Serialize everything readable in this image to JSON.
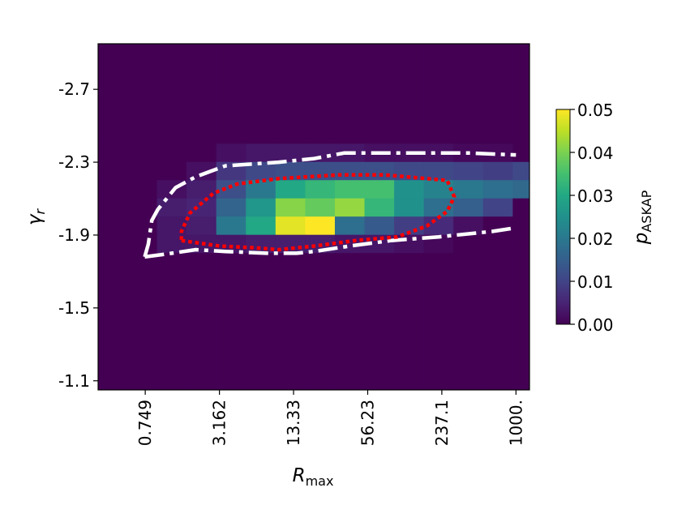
{
  "chart_data": {
    "type": "heatmap",
    "xlabel": "R",
    "xlabel_sub": "max",
    "ylabel": "γ",
    "ylabel_sub": "r",
    "x_scale": "log",
    "x_range": [
      0.3,
      1300
    ],
    "y_range": [
      -1.05,
      -2.95
    ],
    "x_ticks": [
      {
        "value": 0.749,
        "label": "0.749"
      },
      {
        "value": 3.162,
        "label": "3.162"
      },
      {
        "value": 13.33,
        "label": "13.33"
      },
      {
        "value": 56.23,
        "label": "56.23"
      },
      {
        "value": 237.1,
        "label": "237.1"
      },
      {
        "value": 1000,
        "label": "1000."
      }
    ],
    "y_ticks": [
      {
        "value": -2.7,
        "label": "-2.7"
      },
      {
        "value": -2.3,
        "label": "-2.3"
      },
      {
        "value": -1.9,
        "label": "-1.9"
      },
      {
        "value": -1.5,
        "label": "-1.5"
      },
      {
        "value": -1.1,
        "label": "-1.1"
      }
    ],
    "log10_x_edges": [
      -0.525,
      -0.275,
      -0.025,
      0.225,
      0.475,
      0.725,
      0.975,
      1.225,
      1.475,
      1.725,
      1.975,
      2.225,
      2.475,
      2.725,
      2.975,
      3.11
    ],
    "y_edges": [
      -2.95,
      -2.45,
      -2.4,
      -2.3,
      -2.2,
      -2.1,
      -2.0,
      -1.9,
      -1.8,
      -1.05
    ],
    "z_values": [
      [
        0.0,
        0.0,
        0.0,
        0.0,
        0.0,
        0.0,
        0.0,
        0.0,
        0.0,
        0.0,
        0.0,
        0.0,
        0.0,
        0.0,
        0.0
      ],
      [
        0.0,
        0.0,
        0.0,
        0.0,
        0.0,
        0.0,
        0.0,
        0.0,
        0.0,
        0.0,
        0.0,
        0.0,
        0.0,
        0.0,
        0.0
      ],
      [
        0.0,
        0.0,
        0.0,
        0.0,
        0.002,
        0.003,
        0.003,
        0.003,
        0.003,
        0.002,
        0.002,
        0.002,
        0.001,
        0.001,
        0.0
      ],
      [
        0.0,
        0.0,
        0.0,
        0.002,
        0.008,
        0.011,
        0.012,
        0.012,
        0.012,
        0.012,
        0.011,
        0.011,
        0.01,
        0.009,
        0.011
      ],
      [
        0.0,
        0.0,
        0.002,
        0.004,
        0.012,
        0.02,
        0.03,
        0.033,
        0.035,
        0.035,
        0.025,
        0.022,
        0.02,
        0.018,
        0.017
      ],
      [
        0.0,
        0.0,
        0.004,
        0.005,
        0.016,
        0.026,
        0.041,
        0.038,
        0.042,
        0.033,
        0.025,
        0.018,
        0.015,
        0.01,
        0.0
      ],
      [
        0.0,
        0.0,
        0.003,
        0.004,
        0.02,
        0.03,
        0.048,
        0.05,
        0.018,
        0.014,
        0.009,
        0.006,
        0.002,
        0.0,
        0.0
      ],
      [
        0.0,
        0.0,
        0.003,
        0.003,
        0.003,
        0.004,
        0.004,
        0.004,
        0.003,
        0.003,
        0.002,
        0.001,
        0.0,
        0.0,
        0.0
      ],
      [
        0.0,
        0.0,
        0.0,
        0.0,
        0.0,
        0.0,
        0.0,
        0.0,
        0.0,
        0.0,
        0.0,
        0.0,
        0.0,
        0.0,
        0.0
      ]
    ],
    "contours": [
      {
        "style": "dash-dot",
        "color": "#ffffff",
        "points": [
          [
            -0.13,
            -1.78
          ],
          [
            0.1,
            -1.8
          ],
          [
            0.3,
            -1.82
          ],
          [
            0.55,
            -1.81
          ],
          [
            0.9,
            -1.8
          ],
          [
            1.15,
            -1.8
          ],
          [
            1.3,
            -1.81
          ],
          [
            1.6,
            -1.84
          ],
          [
            1.95,
            -1.87
          ],
          [
            2.35,
            -1.89
          ],
          [
            2.8,
            -1.92
          ],
          [
            3.0,
            -1.94
          ]
        ],
        "closed": false
      },
      {
        "style": "dash-dot",
        "color": "#ffffff",
        "points": [
          [
            -0.13,
            -1.78
          ],
          [
            -0.1,
            -1.85
          ],
          [
            -0.07,
            -1.98
          ],
          [
            -0.02,
            -2.04
          ],
          [
            0.13,
            -2.16
          ],
          [
            0.3,
            -2.22
          ],
          [
            0.55,
            -2.28
          ],
          [
            1.0,
            -2.3
          ],
          [
            1.3,
            -2.32
          ],
          [
            1.55,
            -2.35
          ],
          [
            2.0,
            -2.35
          ],
          [
            2.6,
            -2.35
          ],
          [
            3.0,
            -2.34
          ]
        ],
        "closed": false
      },
      {
        "style": "dotted",
        "color": "#ff0000",
        "points": [
          [
            0.18,
            -1.87
          ],
          [
            0.5,
            -1.84
          ],
          [
            0.8,
            -1.83
          ],
          [
            1.0,
            -1.82
          ],
          [
            1.3,
            -1.84
          ],
          [
            1.65,
            -1.87
          ],
          [
            2.0,
            -1.89
          ],
          [
            2.25,
            -1.95
          ],
          [
            2.42,
            -2.03
          ],
          [
            2.48,
            -2.11
          ],
          [
            2.42,
            -2.2
          ],
          [
            1.9,
            -2.23
          ],
          [
            1.5,
            -2.23
          ],
          [
            1.0,
            -2.21
          ],
          [
            0.65,
            -2.18
          ],
          [
            0.45,
            -2.13
          ],
          [
            0.25,
            -2.02
          ],
          [
            0.18,
            -1.92
          ]
        ],
        "closed": true
      }
    ],
    "colorbar": {
      "label": "p",
      "label_sub": "ASKAP",
      "min": 0.0,
      "max": 0.05,
      "ticks": [
        "0.00",
        "0.01",
        "0.02",
        "0.03",
        "0.04",
        "0.05"
      ]
    }
  }
}
